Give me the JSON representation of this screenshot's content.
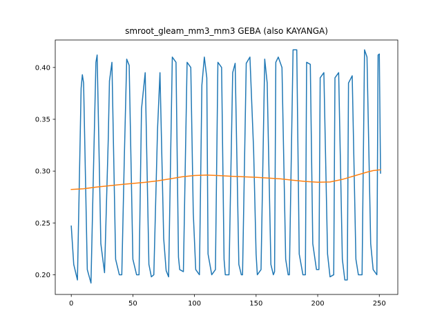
{
  "chart_data": {
    "type": "line",
    "title": "smroot_gleam_mm3_mm3 GEBA (also KAYANGA)",
    "xlabel": "",
    "ylabel": "",
    "xlim": [
      -13,
      265
    ],
    "ylim": [
      0.181,
      0.4265
    ],
    "xticks": [
      0,
      50,
      100,
      150,
      200,
      250
    ],
    "yticks": [
      0.2,
      0.25,
      0.3,
      0.35,
      0.4
    ],
    "xtick_labels": [
      "0",
      "50",
      "100",
      "150",
      "200",
      "250"
    ],
    "ytick_labels": [
      "0.20",
      "0.25",
      "0.30",
      "0.35",
      "0.40"
    ],
    "grid": false,
    "legend": "none",
    "colors": {
      "series1": "#1f77b4",
      "series2": "#ff7f0e",
      "axes": "#000000",
      "background": "#ffffff"
    },
    "series": [
      {
        "x": [
          0,
          2,
          5,
          8,
          9,
          10,
          13,
          16,
          18,
          20,
          21,
          24,
          27,
          30,
          31,
          33,
          36,
          39,
          41,
          43,
          45,
          47,
          50,
          53,
          55,
          57,
          60,
          63,
          65,
          67,
          70,
          72,
          75,
          77,
          79,
          82,
          85,
          87,
          88,
          91,
          94,
          97,
          99,
          101,
          104,
          106,
          108,
          110,
          111,
          114,
          117,
          119,
          122,
          124,
          125,
          128,
          131,
          133,
          136,
          138,
          139,
          142,
          145,
          148,
          150,
          151,
          154,
          157,
          159,
          162,
          164,
          165,
          166,
          168,
          171,
          174,
          176,
          177,
          180,
          183,
          185,
          188,
          190,
          191,
          194,
          196,
          199,
          201,
          202,
          205,
          208,
          210,
          213,
          214,
          217,
          220,
          222,
          224,
          225,
          228,
          231,
          233,
          236,
          238,
          240,
          243,
          245,
          248,
          249,
          250,
          251
        ],
        "values": [
          0.247,
          0.21,
          0.195,
          0.38,
          0.393,
          0.385,
          0.205,
          0.192,
          0.3,
          0.405,
          0.412,
          0.23,
          0.202,
          0.33,
          0.387,
          0.405,
          0.215,
          0.2,
          0.2,
          0.31,
          0.408,
          0.402,
          0.215,
          0.2,
          0.2,
          0.36,
          0.395,
          0.21,
          0.198,
          0.2,
          0.34,
          0.395,
          0.235,
          0.204,
          0.198,
          0.41,
          0.405,
          0.217,
          0.205,
          0.203,
          0.405,
          0.4,
          0.26,
          0.205,
          0.2,
          0.383,
          0.41,
          0.39,
          0.22,
          0.2,
          0.205,
          0.405,
          0.4,
          0.215,
          0.2,
          0.2,
          0.395,
          0.404,
          0.21,
          0.2,
          0.2,
          0.404,
          0.41,
          0.32,
          0.22,
          0.2,
          0.205,
          0.408,
          0.385,
          0.21,
          0.2,
          0.203,
          0.405,
          0.41,
          0.4,
          0.215,
          0.2,
          0.2,
          0.417,
          0.417,
          0.22,
          0.2,
          0.2,
          0.405,
          0.403,
          0.23,
          0.205,
          0.205,
          0.39,
          0.395,
          0.22,
          0.198,
          0.2,
          0.39,
          0.395,
          0.215,
          0.195,
          0.195,
          0.385,
          0.392,
          0.215,
          0.2,
          0.2,
          0.417,
          0.41,
          0.23,
          0.205,
          0.2,
          0.412,
          0.413,
          0.298
        ]
      },
      {
        "x": [
          0,
          10,
          20,
          30,
          40,
          50,
          60,
          70,
          80,
          90,
          100,
          110,
          120,
          130,
          140,
          150,
          160,
          170,
          180,
          190,
          200,
          210,
          220,
          230,
          240,
          245,
          250,
          251
        ],
        "values": [
          0.2823,
          0.283,
          0.2845,
          0.2858,
          0.287,
          0.2881,
          0.2892,
          0.2906,
          0.2925,
          0.2945,
          0.2958,
          0.2962,
          0.2957,
          0.295,
          0.2945,
          0.294,
          0.2933,
          0.2925,
          0.2912,
          0.29,
          0.2893,
          0.2895,
          0.292,
          0.2955,
          0.299,
          0.3005,
          0.3012,
          0.3012
        ]
      }
    ]
  }
}
